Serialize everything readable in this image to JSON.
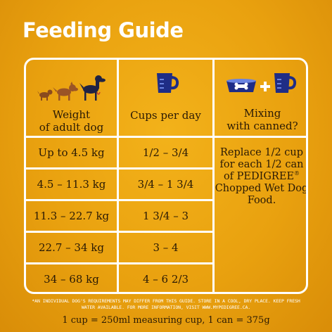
{
  "title": "Feeding Guide",
  "table": {
    "headers": {
      "weight": "Weight\nof adult dog",
      "cups": "Cups per day",
      "mixing": "Mixing\nwith canned?"
    },
    "rows": [
      {
        "weight": "Up to 4.5 kg",
        "cups": "1/2 – 3/4"
      },
      {
        "weight": "4.5 – 11.3 kg",
        "cups": "3/4 – 1 3/4"
      },
      {
        "weight": "11.3 – 22.7 kg",
        "cups": "1 3/4 – 3"
      },
      {
        "weight": "22.7 – 34 kg",
        "cups": "3 – 4"
      },
      {
        "weight": "34 – 68 kg",
        "cups": "4 – 6 2/3"
      }
    ],
    "mixing_note": {
      "before": "Replace 1/2 cup for each 1/2 can of PEDIGREE",
      "mark": "®",
      "after": " Chopped Wet Dog Food."
    }
  },
  "icons": {
    "weight": "three-dogs-icon",
    "cups": "measuring-cup-icon",
    "bowl": "dog-bowl-icon",
    "plus": "plus-icon",
    "cup": "measuring-cup-icon"
  },
  "disclaimer": "*AN INDIVIDUAL DOG'S REQUIREMENTS MAY DIFFER FROM THIS GUIDE. STORE IN A COOL, DRY PLACE. KEEP FRESH WATER AVAILABLE. FOR MORE INFORMATION, VISIT WWW.MYPEDIGREE.CA.",
  "conversion": "1 cup = 250ml measuring cup, 1 can = 375g",
  "colors": {
    "background": "#e9a10f",
    "lines": "#ffffff",
    "icon_blue": "#1f2d86",
    "text": "#2a1a05"
  }
}
